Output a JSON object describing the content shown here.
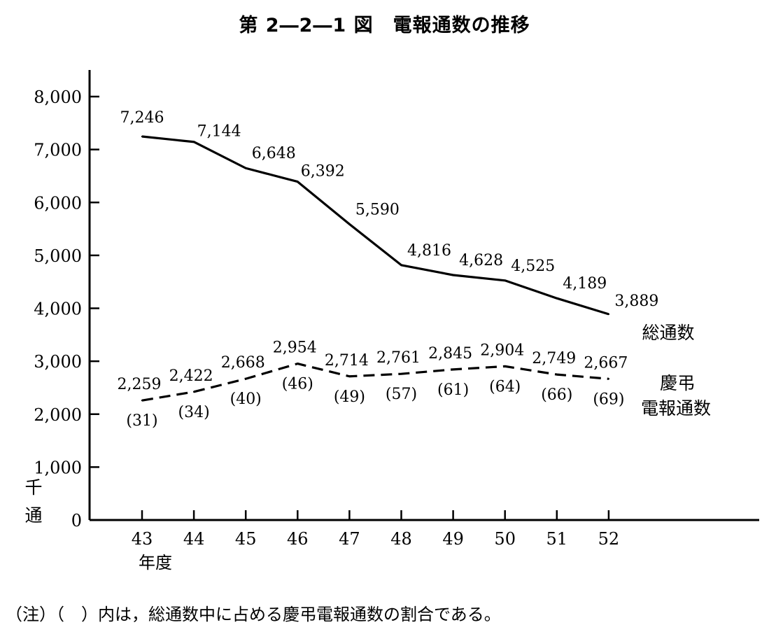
{
  "title": "第 2―2―1 図　電報通数の推移",
  "note": "（注）（　）内は，総通数中に占める慶弔電報通数の割合である。",
  "chart_data": {
    "type": "line",
    "title": "第 2―2―1 図　電報通数の推移",
    "xlabel": "年度",
    "ylabel": "千通",
    "ylim": [
      0,
      8000
    ],
    "yticks": [
      0,
      1000,
      2000,
      3000,
      4000,
      5000,
      6000,
      7000,
      8000
    ],
    "ytick_labels": [
      "0",
      "1,000",
      "2,000",
      "3,000",
      "4,000",
      "5,000",
      "6,000",
      "7,000",
      "8,000"
    ],
    "categories": [
      "43",
      "44",
      "45",
      "46",
      "47",
      "48",
      "49",
      "50",
      "51",
      "52"
    ],
    "grid": false,
    "series": [
      {
        "name": "総通数",
        "style": "solid",
        "values": [
          7246,
          7144,
          6648,
          6392,
          5590,
          4816,
          4628,
          4525,
          4189,
          3889
        ],
        "labels": [
          "7,246",
          "7,144",
          "6,648",
          "6,392",
          "5,590",
          "4,816",
          "4,628",
          "4,525",
          "4,189",
          "3,889"
        ]
      },
      {
        "name": "慶弔電報通数",
        "name_lines": [
          "慶弔",
          "電報通数"
        ],
        "style": "dashed",
        "values": [
          2259,
          2422,
          2668,
          2954,
          2714,
          2761,
          2845,
          2904,
          2749,
          2667
        ],
        "labels": [
          "2,259",
          "2,422",
          "2,668",
          "2,954",
          "2,714",
          "2,761",
          "2,845",
          "2,904",
          "2,749",
          "2,667"
        ],
        "share_percent": [
          31,
          34,
          40,
          46,
          49,
          57,
          61,
          64,
          66,
          69
        ],
        "share_labels": [
          "(31)",
          "(34)",
          "(40)",
          "(46)",
          "(49)",
          "(57)",
          "(61)",
          "(64)",
          "(66)",
          "(69)"
        ]
      }
    ]
  }
}
